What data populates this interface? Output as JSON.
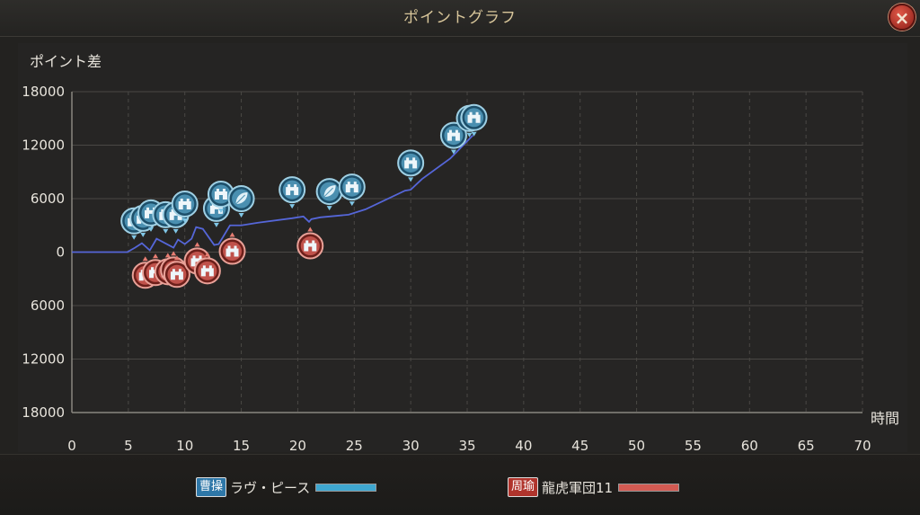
{
  "window": {
    "title": "ポイントグラフ",
    "close_icon": "×"
  },
  "axes": {
    "ylabel": "ポイント差",
    "xunit": "時間"
  },
  "legend": [
    {
      "badge": "曹操",
      "name": "ラヴ・ピース",
      "color": "#3fa7d0",
      "badge_color": "#2e77a8"
    },
    {
      "badge": "周瑜",
      "name": "龍虎軍団11",
      "color": "#d25a52",
      "badge_color": "#b0342c"
    }
  ],
  "chart_data": {
    "type": "line",
    "xlabel": "時間",
    "ylabel": "ポイント差",
    "xlim": [
      0,
      70
    ],
    "ylim": [
      -18000,
      18000
    ],
    "xticks": [
      0,
      5,
      10,
      15,
      20,
      25,
      30,
      35,
      40,
      45,
      50,
      55,
      60,
      65,
      70
    ],
    "yticks": [
      18000,
      12000,
      6000,
      0,
      -6000,
      -12000,
      -18000
    ],
    "ytick_labels": [
      "18000",
      "12000",
      "6000",
      "0",
      "6000",
      "12000",
      "18000"
    ],
    "grid": true,
    "series": [
      {
        "name": "",
        "color": "#5566d8",
        "x": [
          0,
          4.9,
          5.6,
          6.2,
          6.9,
          7.5,
          8.4,
          9.0,
          9.4,
          10.0,
          10.6,
          11.0,
          11.6,
          12.6,
          13.0,
          14.0,
          15.0,
          16.5,
          19.5,
          20.5,
          21.0,
          21.2,
          22,
          24.5,
          26,
          29.5,
          30,
          31,
          33.5,
          35.5
        ],
        "y": [
          0,
          0,
          500,
          1000,
          200,
          1500,
          900,
          500,
          1400,
          900,
          1500,
          2800,
          2600,
          800,
          900,
          3000,
          3000,
          3300,
          3800,
          4000,
          3400,
          3700,
          3900,
          4200,
          4800,
          6900,
          7000,
          8200,
          10500,
          13100
        ]
      }
    ],
    "markers": [
      {
        "team": "blue",
        "x": 5.5,
        "y": 3500,
        "icon": "castle"
      },
      {
        "team": "blue",
        "x": 6.3,
        "y": 3800,
        "icon": "castle"
      },
      {
        "team": "blue",
        "x": 7.0,
        "y": 4400,
        "icon": "castle"
      },
      {
        "team": "blue",
        "x": 8.3,
        "y": 4200,
        "icon": "castle"
      },
      {
        "team": "blue",
        "x": 9.2,
        "y": 4200,
        "icon": "castle"
      },
      {
        "team": "blue",
        "x": 10.0,
        "y": 5400,
        "icon": "castle"
      },
      {
        "team": "blue",
        "x": 12.8,
        "y": 4900,
        "icon": "castle"
      },
      {
        "team": "blue",
        "x": 13.2,
        "y": 6500,
        "icon": "castle"
      },
      {
        "team": "blue",
        "x": 15.0,
        "y": 6000,
        "icon": "leaf"
      },
      {
        "team": "blue",
        "x": 19.5,
        "y": 7000,
        "icon": "castle"
      },
      {
        "team": "blue",
        "x": 22.8,
        "y": 6800,
        "icon": "leaf"
      },
      {
        "team": "blue",
        "x": 24.8,
        "y": 7300,
        "icon": "castle"
      },
      {
        "team": "blue",
        "x": 30.0,
        "y": 10000,
        "icon": "castle"
      },
      {
        "team": "blue",
        "x": 33.8,
        "y": 13100,
        "icon": "castle"
      },
      {
        "team": "blue",
        "x": 35.2,
        "y": 15000,
        "icon": "castle"
      },
      {
        "team": "blue",
        "x": 35.6,
        "y": 15100,
        "icon": "castle"
      },
      {
        "team": "red",
        "x": 6.5,
        "y": -2600,
        "icon": "castle"
      },
      {
        "team": "red",
        "x": 7.4,
        "y": -2300,
        "icon": "castle"
      },
      {
        "team": "red",
        "x": 8.5,
        "y": -2200,
        "icon": "castle"
      },
      {
        "team": "red",
        "x": 9.0,
        "y": -2000,
        "icon": "castle"
      },
      {
        "team": "red",
        "x": 9.3,
        "y": -2500,
        "icon": "castle"
      },
      {
        "team": "red",
        "x": 11.1,
        "y": -1000,
        "icon": "castle"
      },
      {
        "team": "red",
        "x": 12.0,
        "y": -2100,
        "icon": "castle"
      },
      {
        "team": "red",
        "x": 14.2,
        "y": 100,
        "icon": "castle"
      },
      {
        "team": "red",
        "x": 21.1,
        "y": 700,
        "icon": "castle"
      }
    ]
  }
}
